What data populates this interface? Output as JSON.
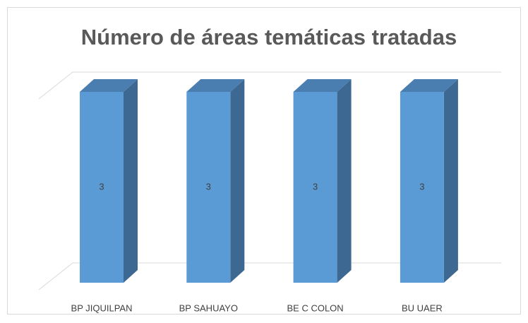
{
  "chart_data": {
    "type": "bar3d",
    "title": "Número de áreas temáticas tratadas",
    "categories": [
      "BP JIQUILPAN",
      "BP SAHUAYO",
      "BE C COLON",
      "BU UAER"
    ],
    "values": [
      3,
      3,
      3,
      3
    ],
    "color": "#5b9bd5",
    "ylim": [
      0,
      3
    ],
    "grid": true
  }
}
